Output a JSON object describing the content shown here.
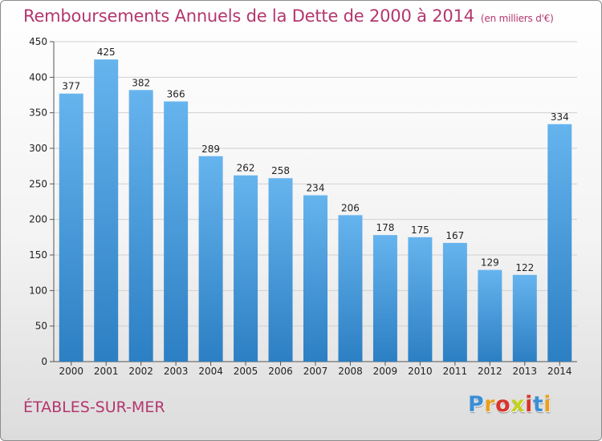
{
  "header": {
    "title": "Remboursements Annuels de la Dette de 2000 à 2014",
    "subtitle": "(en milliers d'€)"
  },
  "footer": {
    "city": "ÉTABLES-SUR-MER",
    "logo_letters": [
      "P",
      "r",
      "o",
      "x",
      "i",
      "t",
      "i"
    ],
    "logo_colors": [
      "#3a8fd6",
      "#e8a020",
      "#d8352a",
      "#c3d21c",
      "#d8352a",
      "#3a8fd6",
      "#e8a020"
    ]
  },
  "chart_data": {
    "type": "bar",
    "title": "Remboursements Annuels de la Dette de 2000 à 2014",
    "subtitle": "(en milliers d'€)",
    "xlabel": "",
    "ylabel": "",
    "categories": [
      "2000",
      "2001",
      "2002",
      "2003",
      "2004",
      "2005",
      "2006",
      "2007",
      "2008",
      "2009",
      "2010",
      "2011",
      "2012",
      "2013",
      "2014"
    ],
    "values": [
      377,
      425,
      382,
      366,
      289,
      262,
      258,
      234,
      206,
      178,
      175,
      167,
      129,
      122,
      334
    ],
    "ylim": [
      0,
      450
    ],
    "yticks": [
      0,
      50,
      100,
      150,
      200,
      250,
      300,
      350,
      400,
      450
    ],
    "grid": true,
    "legend": "none",
    "colors": {
      "bar_top": "#66b4ee",
      "bar_bottom": "#2c7fc3",
      "grid": "#d0d0d0",
      "axis": "#555555",
      "text": "#222222"
    }
  }
}
